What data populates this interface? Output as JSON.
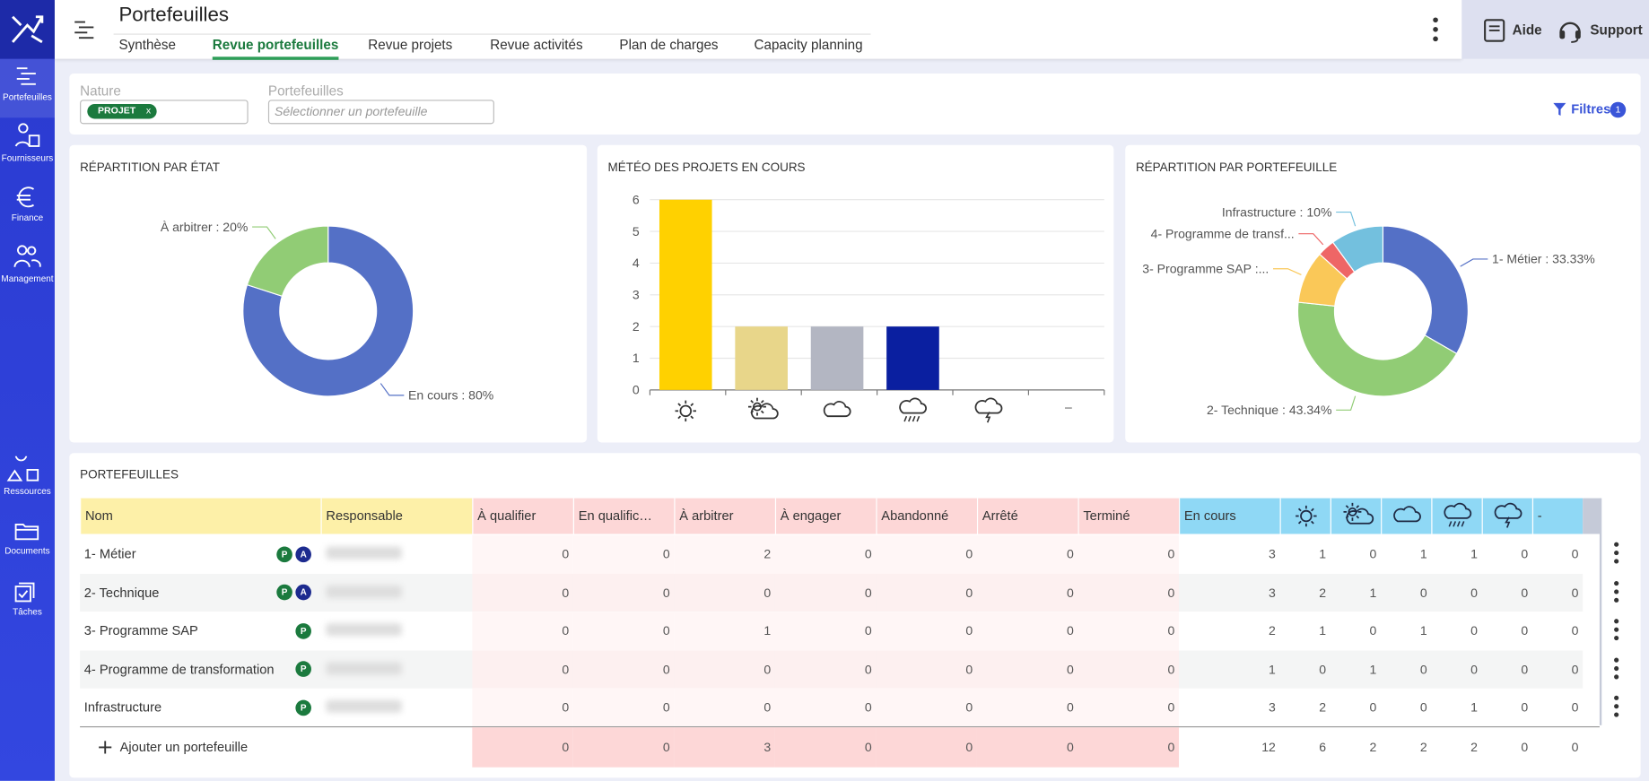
{
  "sidebar": {
    "items": [
      "Portefeuilles",
      "Fournisseurs",
      "Finance",
      "Management",
      "Ressources",
      "Documents",
      "Tâches"
    ]
  },
  "header": {
    "title": "Portefeuilles",
    "tabs": [
      "Synthèse",
      "Revue portefeuilles",
      "Revue projets",
      "Revue activités",
      "Plan de charges",
      "Capacity planning"
    ],
    "active_tab": 1,
    "help": "Aide",
    "support": "Support"
  },
  "filters": {
    "nature_label": "Nature",
    "nature_tag": "PROJET",
    "nature_tag_remove": "x",
    "portfolio_label": "Portefeuilles",
    "portfolio_placeholder": "Sélectionner un portefeuille",
    "filters_button": "Filtres",
    "filters_count": 1
  },
  "chart_data": [
    {
      "type": "donut",
      "title": "RÉPARTITION PAR ÉTAT",
      "categories": [
        "En cours",
        "À arbitrer"
      ],
      "values": [
        80,
        20
      ],
      "value_labels": [
        "En cours : 80%",
        "À arbitrer : 20%"
      ],
      "colors": [
        "#5470c6",
        "#91cc75"
      ]
    },
    {
      "type": "bar",
      "title": "MÉTÉO DES PROJETS EN COURS",
      "categories": [
        null,
        null,
        null,
        null,
        null,
        "–"
      ],
      "values": [
        6,
        2,
        2,
        2,
        0,
        0
      ],
      "colors": [
        "#ffd100",
        "#e8d68a",
        "#b3b6c2",
        "#0a1fa0",
        "#5470c6",
        "#5470c6"
      ],
      "ylim": [
        0,
        6
      ],
      "yticks": [
        0,
        1,
        2,
        3,
        4,
        5,
        6
      ],
      "grid": true
    },
    {
      "type": "donut",
      "title": "RÉPARTITION PAR PORTEFEUILLE",
      "values": [
        33.33,
        43.34,
        10,
        3.33,
        10
      ],
      "value_labels": [
        "1- Métier : 33.33%",
        "2- Technique : 43.34%",
        "3- Programme SAP :...",
        "4- Programme de transf...",
        "Infrastructure : 10%"
      ],
      "colors": [
        "#5470c6",
        "#91cc75",
        "#fac858",
        "#ee6666",
        "#73c0de"
      ]
    }
  ],
  "table": {
    "title": "PORTEFEUILLES",
    "columns": [
      "Nom",
      "Responsable",
      "À qualifier",
      "En qualific…",
      "À arbitrer",
      "À engager",
      "Abandonné",
      "Arrêté",
      "Terminé",
      "En cours",
      null,
      null,
      null,
      null,
      null,
      "-"
    ],
    "rows": [
      {
        "name": "1- Métier",
        "badges": [
          "P",
          "A"
        ],
        "values": [
          0,
          0,
          2,
          0,
          0,
          0,
          0,
          3,
          1,
          0,
          1,
          1,
          0,
          0
        ]
      },
      {
        "name": "2- Technique",
        "badges": [
          "P",
          "A"
        ],
        "values": [
          0,
          0,
          0,
          0,
          0,
          0,
          0,
          3,
          2,
          1,
          0,
          0,
          0,
          0
        ]
      },
      {
        "name": "3- Programme SAP",
        "badges": [
          "P"
        ],
        "values": [
          0,
          0,
          1,
          0,
          0,
          0,
          0,
          2,
          1,
          0,
          1,
          0,
          0,
          0
        ]
      },
      {
        "name": "4- Programme de transformation",
        "badges": [
          "P"
        ],
        "values": [
          0,
          0,
          0,
          0,
          0,
          0,
          0,
          1,
          0,
          1,
          0,
          0,
          0,
          0
        ]
      },
      {
        "name": "Infrastructure",
        "badges": [
          "P"
        ],
        "values": [
          0,
          0,
          0,
          0,
          0,
          0,
          0,
          3,
          2,
          0,
          0,
          1,
          0,
          0
        ]
      }
    ],
    "footer": {
      "add": "Ajouter un portefeuille",
      "values": [
        0,
        0,
        3,
        0,
        0,
        0,
        0,
        12,
        6,
        2,
        2,
        2,
        0,
        0
      ]
    }
  }
}
